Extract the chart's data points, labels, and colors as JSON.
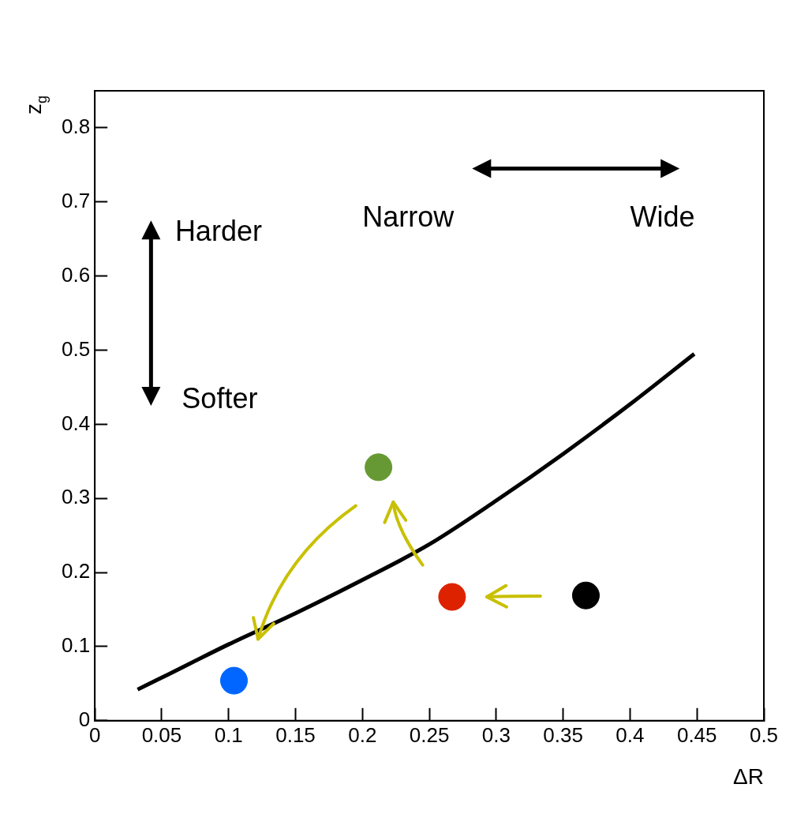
{
  "chart_data": {
    "type": "scatter",
    "xlabel": "ΔR",
    "ylabel": "z$_{g}$",
    "xlim": [
      0,
      0.5
    ],
    "ylim": [
      0,
      0.85
    ],
    "xticks": [
      0,
      0.05,
      0.1,
      0.15,
      0.2,
      0.25,
      0.3,
      0.35,
      0.4,
      0.45,
      0.5
    ],
    "yticks": [
      0,
      0.1,
      0.2,
      0.3,
      0.4,
      0.5,
      0.6,
      0.7,
      0.8
    ],
    "annotations": [
      "Harder",
      "Softer",
      "Narrow",
      "Wide"
    ],
    "legend": false,
    "series": [
      {
        "type": "line",
        "color": "#000000",
        "marker": "none",
        "x": [
          0.032,
          0.05,
          0.1,
          0.15,
          0.2,
          0.25,
          0.3,
          0.35,
          0.4,
          0.448
        ],
        "values": [
          0.042,
          0.058,
          0.103,
          0.145,
          0.19,
          0.238,
          0.297,
          0.36,
          0.427,
          0.495
        ]
      },
      {
        "type": "scatter",
        "marker": "circle",
        "colors": [
          "#0066ff",
          "#669933",
          "#dd2200",
          "#000000"
        ],
        "x": [
          0.104,
          0.212,
          0.267,
          0.367
        ],
        "values": [
          0.054,
          0.342,
          0.167,
          0.169
        ]
      }
    ]
  }
}
